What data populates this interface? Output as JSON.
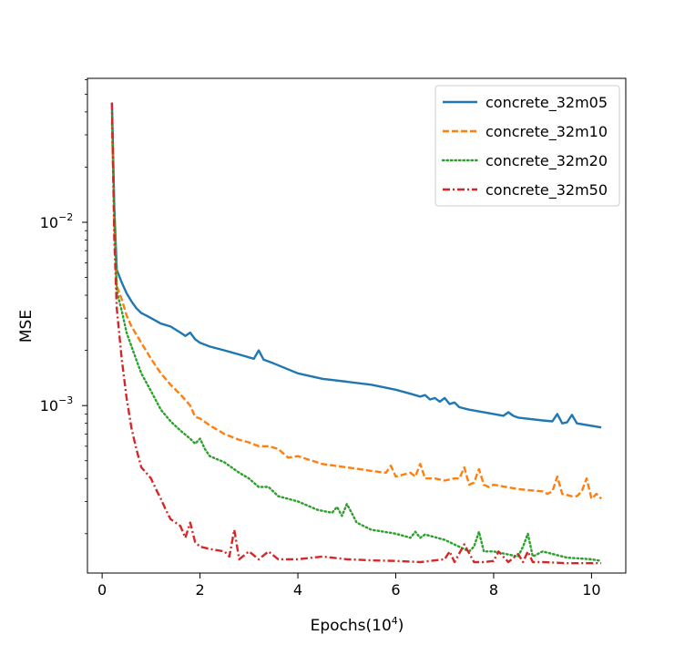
{
  "chart_data": {
    "type": "line",
    "title": "",
    "xlabel": "Epochs(10",
    "xlabel_exponent": "4",
    "xlabel_close": ")",
    "ylabel": "MSE",
    "xscale": "linear",
    "yscale": "log",
    "xlim": [
      -0.3,
      10.7
    ],
    "ylim": [
      0.000122,
      0.061
    ],
    "grid": false,
    "legend_position": "upper right",
    "x_ticks": [
      0,
      2,
      4,
      6,
      8,
      10
    ],
    "x_tick_labels": [
      "0",
      "2",
      "4",
      "6",
      "8",
      "10"
    ],
    "y_major_ticks": [
      0.001,
      0.01
    ],
    "y_tick_labels": [
      {
        "base": "10",
        "exp": "−3"
      },
      {
        "base": "10",
        "exp": "−2"
      }
    ],
    "y_minor_ticks": [
      0.0002,
      0.0003,
      0.0004,
      0.0005,
      0.0006,
      0.0007,
      0.0008,
      0.0009,
      0.002,
      0.003,
      0.004,
      0.005,
      0.006,
      0.007,
      0.008,
      0.009,
      0.02,
      0.03,
      0.04,
      0.05,
      0.06
    ],
    "series": [
      {
        "name": "concrete_32m05",
        "color": "#1f77b4",
        "dash": "solid",
        "x": [
          0.2,
          0.25,
          0.3,
          0.4,
          0.5,
          0.6,
          0.7,
          0.8,
          0.9,
          1.0,
          1.2,
          1.4,
          1.6,
          1.7,
          1.8,
          1.9,
          2.0,
          2.2,
          2.5,
          2.8,
          3.1,
          3.2,
          3.3,
          3.5,
          4.0,
          4.5,
          5.0,
          5.5,
          6.0,
          6.3,
          6.5,
          6.6,
          6.7,
          6.8,
          6.9,
          7.0,
          7.1,
          7.2,
          7.3,
          7.5,
          8.0,
          8.2,
          8.3,
          8.4,
          8.5,
          9.0,
          9.2,
          9.3,
          9.4,
          9.5,
          9.6,
          9.7,
          10.2
        ],
        "y": [
          0.045,
          0.012,
          0.0055,
          0.0047,
          0.0041,
          0.0037,
          0.0034,
          0.0032,
          0.0031,
          0.003,
          0.0028,
          0.0027,
          0.0025,
          0.0024,
          0.0025,
          0.0023,
          0.0022,
          0.0021,
          0.002,
          0.0019,
          0.0018,
          0.002,
          0.00178,
          0.0017,
          0.0015,
          0.0014,
          0.00135,
          0.0013,
          0.00122,
          0.00116,
          0.00112,
          0.00114,
          0.00108,
          0.0011,
          0.00105,
          0.0011,
          0.00102,
          0.00104,
          0.00098,
          0.00095,
          0.0009,
          0.00088,
          0.00092,
          0.00088,
          0.00086,
          0.00083,
          0.00082,
          0.0009,
          0.0008,
          0.00081,
          0.00089,
          0.0008,
          0.00076
        ]
      },
      {
        "name": "concrete_32m10",
        "color": "#ff7f0e",
        "dash": "dashed",
        "x": [
          0.2,
          0.25,
          0.3,
          0.4,
          0.5,
          0.6,
          0.8,
          1.0,
          1.2,
          1.4,
          1.6,
          1.8,
          1.9,
          2.0,
          2.2,
          2.5,
          2.8,
          3.0,
          3.2,
          3.4,
          3.6,
          3.8,
          4.0,
          4.5,
          5.0,
          5.5,
          5.8,
          5.9,
          6.0,
          6.3,
          6.4,
          6.5,
          6.6,
          6.8,
          7.0,
          7.2,
          7.3,
          7.4,
          7.5,
          7.6,
          7.7,
          7.8,
          7.9,
          8.0,
          8.5,
          9.0,
          9.1,
          9.2,
          9.3,
          9.4,
          9.6,
          9.7,
          9.8,
          9.9,
          10.0,
          10.1,
          10.2
        ],
        "y": [
          0.035,
          0.01,
          0.0045,
          0.0038,
          0.0031,
          0.0027,
          0.0022,
          0.0018,
          0.0015,
          0.0013,
          0.00115,
          0.001,
          0.00087,
          0.00085,
          0.00078,
          0.0007,
          0.00065,
          0.00063,
          0.0006,
          0.0006,
          0.00058,
          0.00052,
          0.00053,
          0.00048,
          0.00046,
          0.00044,
          0.00043,
          0.00047,
          0.00041,
          0.00043,
          0.00041,
          0.00048,
          0.0004,
          0.0004,
          0.00039,
          0.0004,
          0.0004,
          0.00046,
          0.00037,
          0.00038,
          0.00045,
          0.00037,
          0.00036,
          0.00037,
          0.00035,
          0.00034,
          0.00033,
          0.00034,
          0.00041,
          0.00033,
          0.00032,
          0.00032,
          0.00034,
          0.0004,
          0.00031,
          0.00033,
          0.00031
        ]
      },
      {
        "name": "concrete_32m20",
        "color": "#2ca02c",
        "dash": "dotted",
        "x": [
          0.2,
          0.25,
          0.3,
          0.4,
          0.5,
          0.6,
          0.8,
          1.0,
          1.2,
          1.4,
          1.6,
          1.8,
          1.9,
          2.0,
          2.1,
          2.2,
          2.5,
          2.8,
          3.0,
          3.2,
          3.4,
          3.6,
          4.0,
          4.4,
          4.7,
          4.8,
          4.9,
          5.0,
          5.1,
          5.2,
          5.5,
          6.0,
          6.3,
          6.4,
          6.5,
          6.6,
          7.0,
          7.5,
          7.6,
          7.7,
          7.8,
          8.0,
          8.5,
          8.6,
          8.7,
          8.8,
          9.0,
          9.5,
          10.0,
          10.2
        ],
        "y": [
          0.04,
          0.011,
          0.0042,
          0.0033,
          0.0025,
          0.0021,
          0.0015,
          0.0012,
          0.00095,
          0.00082,
          0.00073,
          0.00066,
          0.00062,
          0.00066,
          0.00058,
          0.00053,
          0.00049,
          0.00043,
          0.0004,
          0.00036,
          0.00036,
          0.00032,
          0.0003,
          0.00027,
          0.00026,
          0.00028,
          0.00025,
          0.00029,
          0.00026,
          0.00023,
          0.00021,
          0.0002,
          0.00019,
          0.000205,
          0.00019,
          0.000198,
          0.000185,
          0.00016,
          0.00017,
          0.000205,
          0.00016,
          0.00016,
          0.00015,
          0.00017,
          0.0002,
          0.00015,
          0.00016,
          0.000148,
          0.000145,
          0.000142
        ]
      },
      {
        "name": "concrete_32m50",
        "color": "#d62728",
        "dash": "dashdot",
        "x": [
          0.2,
          0.25,
          0.3,
          0.4,
          0.5,
          0.6,
          0.7,
          0.8,
          0.9,
          1.0,
          1.1,
          1.2,
          1.3,
          1.4,
          1.5,
          1.6,
          1.7,
          1.8,
          1.9,
          2.0,
          2.2,
          2.5,
          2.6,
          2.7,
          2.8,
          3.0,
          3.2,
          3.4,
          3.6,
          4.0,
          4.5,
          5.0,
          5.5,
          6.0,
          6.5,
          7.0,
          7.1,
          7.2,
          7.4,
          7.6,
          7.8,
          8.0,
          8.1,
          8.3,
          8.5,
          8.6,
          8.7,
          8.8,
          9.0,
          9.5,
          10.0,
          10.2
        ],
        "y": [
          0.045,
          0.008,
          0.0034,
          0.0018,
          0.0011,
          0.00075,
          0.00058,
          0.00046,
          0.00043,
          0.0004,
          0.00035,
          0.00031,
          0.00027,
          0.00024,
          0.00023,
          0.00022,
          0.00019,
          0.00023,
          0.00018,
          0.00017,
          0.000165,
          0.00016,
          0.00015,
          0.00021,
          0.000145,
          0.00016,
          0.000145,
          0.00016,
          0.000145,
          0.000145,
          0.00015,
          0.000145,
          0.000143,
          0.000142,
          0.00014,
          0.000145,
          0.00016,
          0.00014,
          0.000175,
          0.00014,
          0.00014,
          0.000142,
          0.00016,
          0.00014,
          0.000155,
          0.00014,
          0.00016,
          0.00014,
          0.00014,
          0.000138,
          0.000138,
          0.000138
        ]
      }
    ]
  }
}
